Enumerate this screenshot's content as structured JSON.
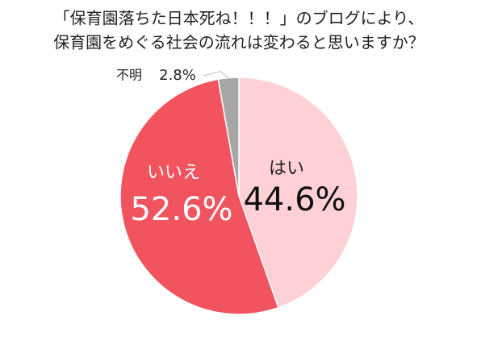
{
  "chart_data": {
    "type": "pie",
    "title": [
      "「保育園落ちた日本死ね！！！」のブログにより、",
      "保育園をめぐる社会の流れは変わると思いますか？"
    ],
    "categories": [
      "はい",
      "いいえ",
      "不明"
    ],
    "values": [
      44.6,
      52.6,
      2.8
    ],
    "value_labels": [
      "44.6%",
      "52.6%",
      "2.8%"
    ],
    "colors": [
      "#ffd0d5",
      "#f2545f",
      "#a6a6a6"
    ]
  }
}
